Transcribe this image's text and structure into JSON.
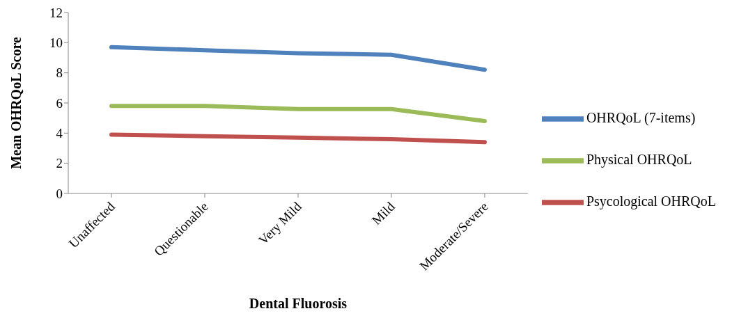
{
  "chart_data": {
    "type": "line",
    "xlabel": "Dental Fluorosis",
    "ylabel": "Mean OHRQoL Score",
    "categories": [
      "Unaffected",
      "Questionable",
      "Very Mild",
      "Mild",
      "Moderate/Severe"
    ],
    "series": [
      {
        "name": "OHRQoL (7-items)",
        "color": "#4f81bd",
        "values": [
          9.7,
          9.5,
          9.3,
          9.2,
          8.2
        ]
      },
      {
        "name": "Psycological OHRQoL",
        "color": "#c0504d",
        "values": [
          3.9,
          3.8,
          3.7,
          3.6,
          3.4
        ]
      },
      {
        "name": "Physical OHRQoL",
        "color": "#9bbb59",
        "values": [
          5.8,
          5.8,
          5.6,
          5.6,
          4.8
        ]
      }
    ],
    "ylim": [
      0,
      12
    ],
    "yticks": [
      0,
      2,
      4,
      6,
      8,
      10,
      12
    ],
    "grid": false,
    "legend": "right"
  }
}
